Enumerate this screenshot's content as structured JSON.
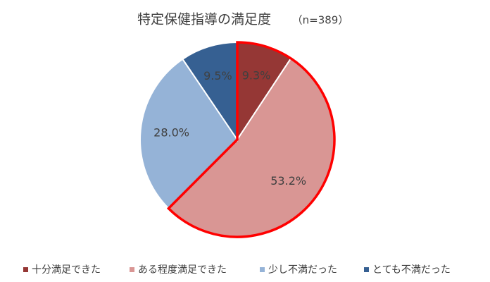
{
  "chart_data": {
    "type": "pie",
    "title": "特定保健指導の満足度",
    "subtitle": "（n=389）",
    "categories": [
      "十分満足できた",
      "ある程度満足できた",
      "少し不満だった",
      "とても不満だった"
    ],
    "values": [
      9.3,
      53.2,
      28.0,
      9.5
    ],
    "value_labels": [
      "9.3%",
      "53.2%",
      "28.0%",
      "9.5%"
    ],
    "colors": [
      "#953735",
      "#d99694",
      "#95b3d7",
      "#366092"
    ],
    "legend": "bottom"
  }
}
